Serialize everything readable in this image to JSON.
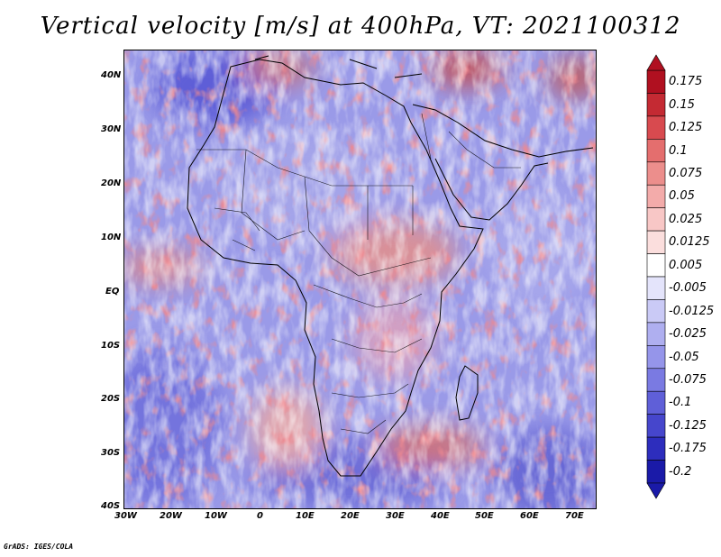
{
  "title": "Vertical velocity [m/s] at 400hPa, VT: 2021100312",
  "credit": "GrADS: IGES/COLA",
  "lat_ticks": [
    "40N",
    "30N",
    "20N",
    "10N",
    "EQ",
    "10S",
    "20S",
    "30S",
    "40S"
  ],
  "lon_ticks": [
    "30W",
    "20W",
    "10W",
    "0",
    "10E",
    "20E",
    "30E",
    "40E",
    "50E",
    "60E",
    "70E"
  ],
  "colorbar": {
    "levels": [
      "0.175",
      "0.15",
      "0.125",
      "0.1",
      "0.075",
      "0.05",
      "0.025",
      "0.0125",
      "0.005",
      "-0.005",
      "-0.0125",
      "-0.025",
      "-0.05",
      "-0.075",
      "-0.1",
      "-0.125",
      "-0.175",
      "-0.2"
    ],
    "colors": [
      "#b01020",
      "#c42a33",
      "#d84a4f",
      "#e46e6e",
      "#ec8e8c",
      "#f3abaa",
      "#f8c7c6",
      "#fbdedd",
      "#ffffff",
      "#e4e4fb",
      "#cacaf6",
      "#afaff0",
      "#9595ea",
      "#7a7ae2",
      "#5f5fd8",
      "#4646cc",
      "#2d2dbd",
      "#1a1aa8"
    ]
  }
}
